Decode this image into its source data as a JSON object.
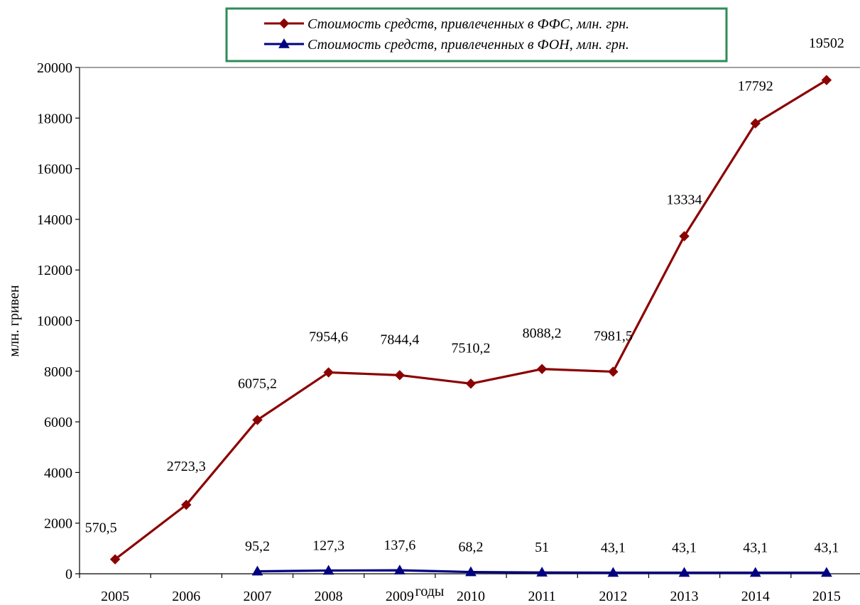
{
  "chart_data": {
    "type": "line",
    "categories": [
      "2005",
      "2006",
      "2007",
      "2008",
      "2009",
      "2010",
      "2011",
      "2012",
      "2013",
      "2014",
      "2015"
    ],
    "series": [
      {
        "name": "Стоимость средств, привлеченных в ФФС, млн. грн.",
        "color": "#8B0000",
        "marker": "diamond",
        "values": [
          570.5,
          2723.3,
          6075.2,
          7954.6,
          7844.4,
          7510.2,
          8088.2,
          7981.5,
          13334,
          17792,
          19502
        ],
        "labels": [
          "570,5",
          "2723,3",
          "6075,2",
          "7954,6",
          "7844,4",
          "7510,2",
          "8088,2",
          "7981,5",
          "13334",
          "17792",
          "19502"
        ]
      },
      {
        "name": "Стоимость средств, привлеченных в ФОН, млн. грн.",
        "color": "#000080",
        "marker": "triangle",
        "values": [
          null,
          null,
          95.2,
          127.3,
          137.6,
          68.2,
          51,
          43.1,
          43.1,
          43.1,
          43.1
        ],
        "labels": [
          null,
          null,
          "95,2",
          "127,3",
          "137,6",
          "68,2",
          "51",
          "43,1",
          "43,1",
          "43,1",
          "43,1"
        ]
      }
    ],
    "xlabel": "годы",
    "ylabel": "млн. гривен",
    "ylim": [
      0,
      20000
    ],
    "yticks": [
      0,
      2000,
      4000,
      6000,
      8000,
      10000,
      12000,
      14000,
      16000,
      18000,
      20000
    ],
    "legend": {
      "placement": "top-center",
      "border_color": "#2E8B57"
    },
    "grid": false
  }
}
